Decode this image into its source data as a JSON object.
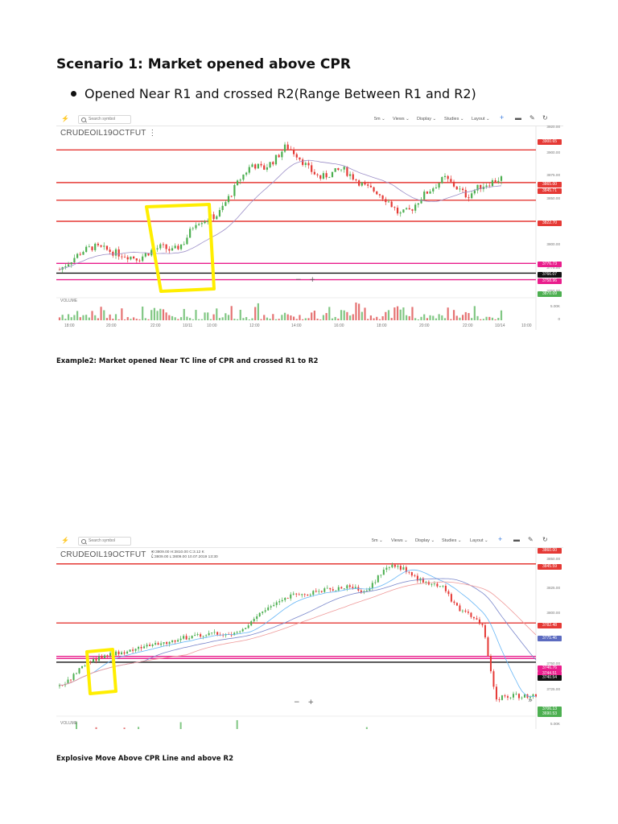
{
  "page": {
    "heading": "Scenario 1: Market opened above CPR",
    "bullet": "Opened Near R1 and crossed R2(Range Between R1 and R2)",
    "caption1": "Example2: Market opened Near TC line of CPR and crossed R1 to R2",
    "caption2": "Explosive Move Above CPR Line and above R2"
  },
  "colors": {
    "red": "#e53935",
    "magenta": "#e91e8c",
    "black": "#111111",
    "green": "#4caf50",
    "volred": "#e53935",
    "purple": "#5c6bc0",
    "highlight": "#ffee00"
  },
  "chart1": {
    "toolbar": {
      "search": "Search symbol",
      "interval": "5m ⌄",
      "views": "Views ⌄",
      "display": "Display ⌄",
      "studies": "Studies ⌄",
      "layout": "Layout ⌄"
    },
    "symbol": "CRUDEOIL19OCTFUT ⋮",
    "volume_label": "VOLUME",
    "zoom": [
      "−",
      "+"
    ],
    "price_ticks": [
      "3920.00",
      "3900.00",
      "3875.00",
      "3850.00",
      "3825.00",
      "3800.00",
      "3775.00",
      "3750.00",
      "5.00K",
      "0"
    ],
    "price_boxes": [
      {
        "label": "3900.65",
        "color": "#e53935"
      },
      {
        "label": "3865.00",
        "color": "#e53935"
      },
      {
        "label": "3845.71",
        "color": "#e53935"
      },
      {
        "label": "3822.70",
        "color": "#e53935"
      },
      {
        "label": "3776.73",
        "color": "#e91e8c"
      },
      {
        "label": "3766.07",
        "color": "#111111"
      },
      {
        "label": "3758.96",
        "color": "#e91e8c"
      },
      {
        "label": "3870.09",
        "color": "#4caf50"
      }
    ],
    "time_ticks": [
      "18:00",
      "20:00",
      "22:00",
      "10/11",
      "10:00",
      "12:00",
      "14:00",
      "16:00",
      "18:00",
      "20:00",
      "22:00",
      "10/14",
      "10:00"
    ],
    "chart_data": {
      "type": "candlestick",
      "title": "CRUDEOIL19OCTFUT",
      "levels": [
        {
          "value": 3900.65,
          "color": "red"
        },
        {
          "value": 3865.0,
          "color": "red"
        },
        {
          "value": 3845.71,
          "color": "red"
        },
        {
          "value": 3822.7,
          "color": "red"
        },
        {
          "value": 3776.73,
          "color": "magenta"
        },
        {
          "value": 3766.07,
          "color": "black"
        },
        {
          "value": 3758.96,
          "color": "magenta"
        }
      ],
      "close_path": [
        3770,
        3780,
        3790,
        3795,
        3792,
        3788,
        3785,
        3782,
        3790,
        3795,
        3790,
        3800,
        3822,
        3825,
        3830,
        3850,
        3870,
        3885,
        3880,
        3890,
        3905,
        3895,
        3880,
        3870,
        3875,
        3880,
        3870,
        3860,
        3855,
        3845,
        3830,
        3835,
        3850,
        3860,
        3870,
        3860,
        3850,
        3860,
        3865,
        3870
      ]
    }
  },
  "chart2": {
    "toolbar": {
      "search": "Search symbol",
      "interval": "5m ⌄",
      "views": "Views ⌄",
      "display": "Display ⌄",
      "studies": "Studies ⌄",
      "layout": "Layout ⌄"
    },
    "symbol": "CRUDEOIL19OCTFUT ⋮",
    "ohlc_line1": "O:3809.00  H:3810.00  C:3.12 K",
    "ohlc_line2": "L:3809.00  L:3809.00  10.07.2019 13:30",
    "volume_label": "VOLUME",
    "zoom": [
      "−",
      "+"
    ],
    "price_ticks": [
      "3850.00",
      "3825.00",
      "3800.00",
      "3775.00",
      "3750.00",
      "3725.00",
      "5.00K"
    ],
    "price_boxes": [
      {
        "label": "3860.00",
        "color": "#e53935"
      },
      {
        "label": "3845.59",
        "color": "#e53935"
      },
      {
        "label": "3782.48",
        "color": "#e53935"
      },
      {
        "label": "3775.46",
        "color": "#5c6bc0"
      },
      {
        "label": "3746.76",
        "color": "#e91e8c"
      },
      {
        "label": "3744.51",
        "color": "#e91e8c"
      },
      {
        "label": "3740.54",
        "color": "#111111"
      },
      {
        "label": "3706.13",
        "color": "#4caf50"
      },
      {
        "label": "3690.53",
        "color": "#4caf50"
      }
    ],
    "chart_data": {
      "type": "candlestick",
      "title": "CRUDEOIL19OCTFUT",
      "levels": [
        {
          "value": 3845.59,
          "color": "red"
        },
        {
          "value": 3782.48,
          "color": "red"
        },
        {
          "value": 3746.76,
          "color": "magenta"
        },
        {
          "value": 3744.51,
          "color": "magenta"
        },
        {
          "value": 3740.54,
          "color": "black"
        }
      ],
      "close_path": [
        3715,
        3725,
        3740,
        3745,
        3750,
        3752,
        3755,
        3758,
        3760,
        3765,
        3768,
        3770,
        3772,
        3770,
        3775,
        3790,
        3800,
        3810,
        3812,
        3815,
        3818,
        3820,
        3822,
        3815,
        3830,
        3845,
        3840,
        3830,
        3825,
        3820,
        3800,
        3790,
        3780,
        3700,
        3695,
        3700,
        3705
      ]
    }
  }
}
